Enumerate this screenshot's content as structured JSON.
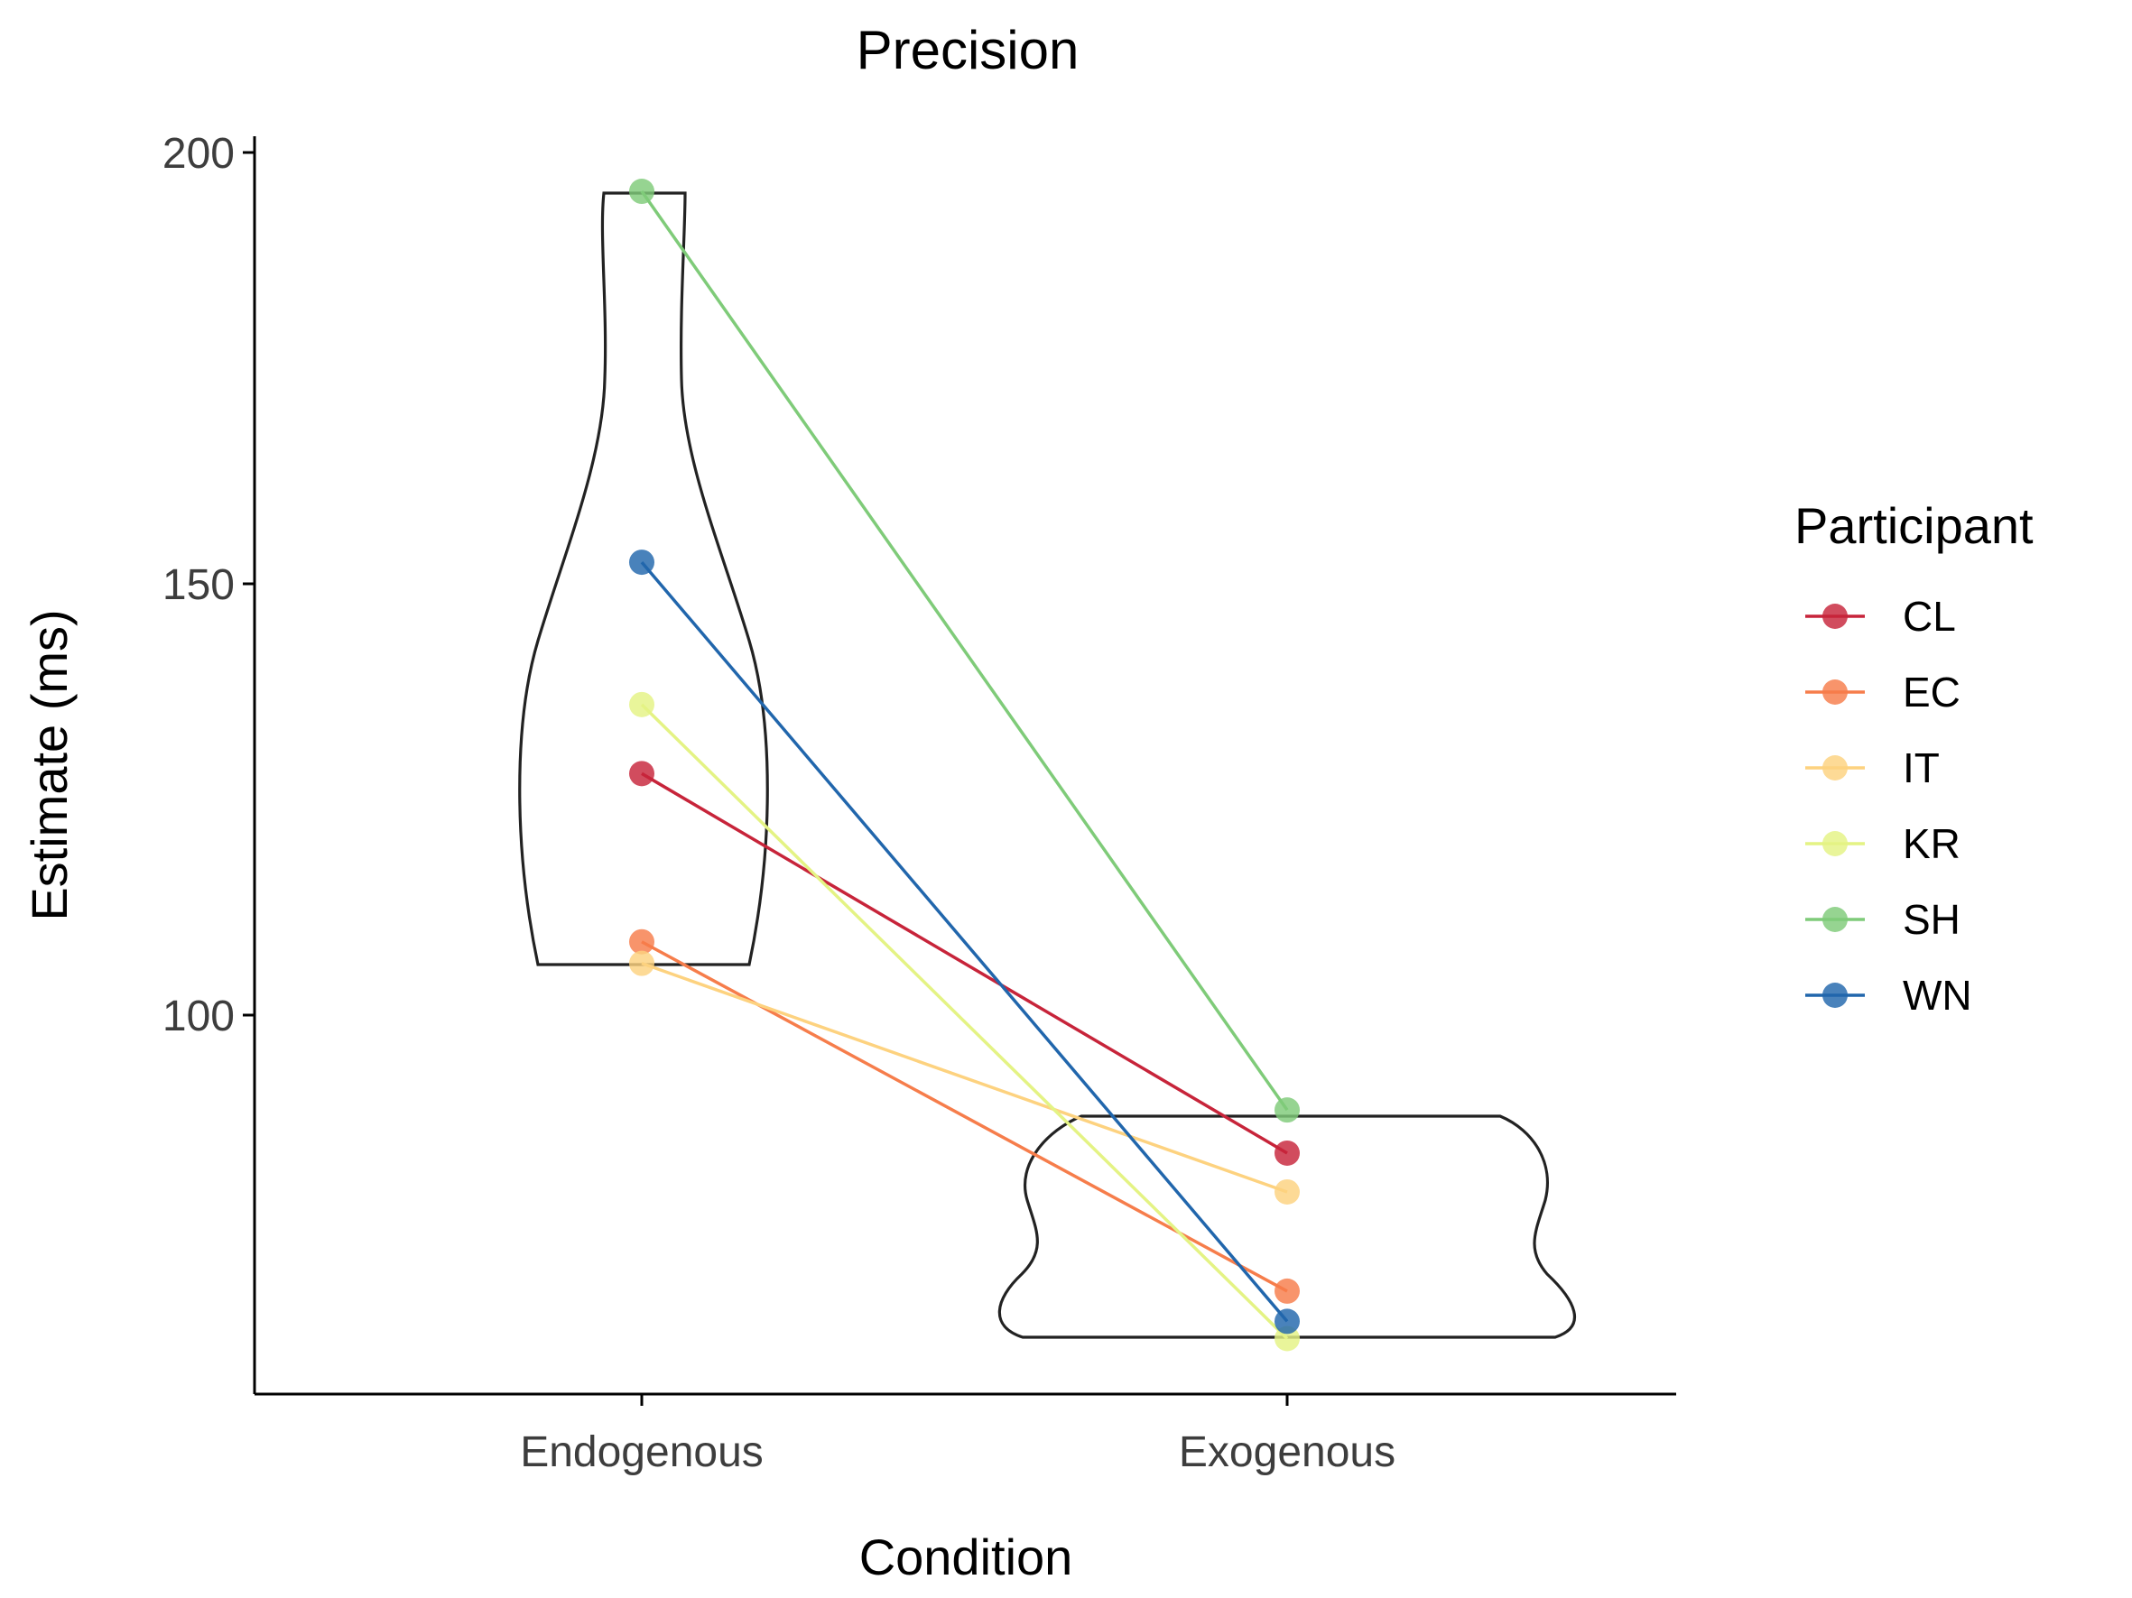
{
  "chart_data": {
    "type": "violin",
    "title": "Precision",
    "xlabel": "Condition",
    "ylabel": "Estimate (ms)",
    "categories": [
      "Endogenous",
      "Exogenous"
    ],
    "ylim": [
      56,
      202
    ],
    "yticks": [
      100,
      150,
      200
    ],
    "grid": false,
    "legend": {
      "title": "Participant",
      "placement": "right"
    },
    "series": [
      {
        "name": "CL",
        "color": "#c7243a",
        "values": [
          128,
          84
        ]
      },
      {
        "name": "EC",
        "color": "#f67d4b",
        "values": [
          108.5,
          68
        ]
      },
      {
        "name": "IT",
        "color": "#fdd27f",
        "values": [
          106,
          79.5
        ]
      },
      {
        "name": "KR",
        "color": "#e4f384",
        "values": [
          136,
          62.5
        ]
      },
      {
        "name": "SH",
        "color": "#7fcb79",
        "values": [
          195.5,
          89
        ]
      },
      {
        "name": "WN",
        "color": "#2166ac",
        "values": [
          152.5,
          64.5
        ]
      }
    ]
  }
}
